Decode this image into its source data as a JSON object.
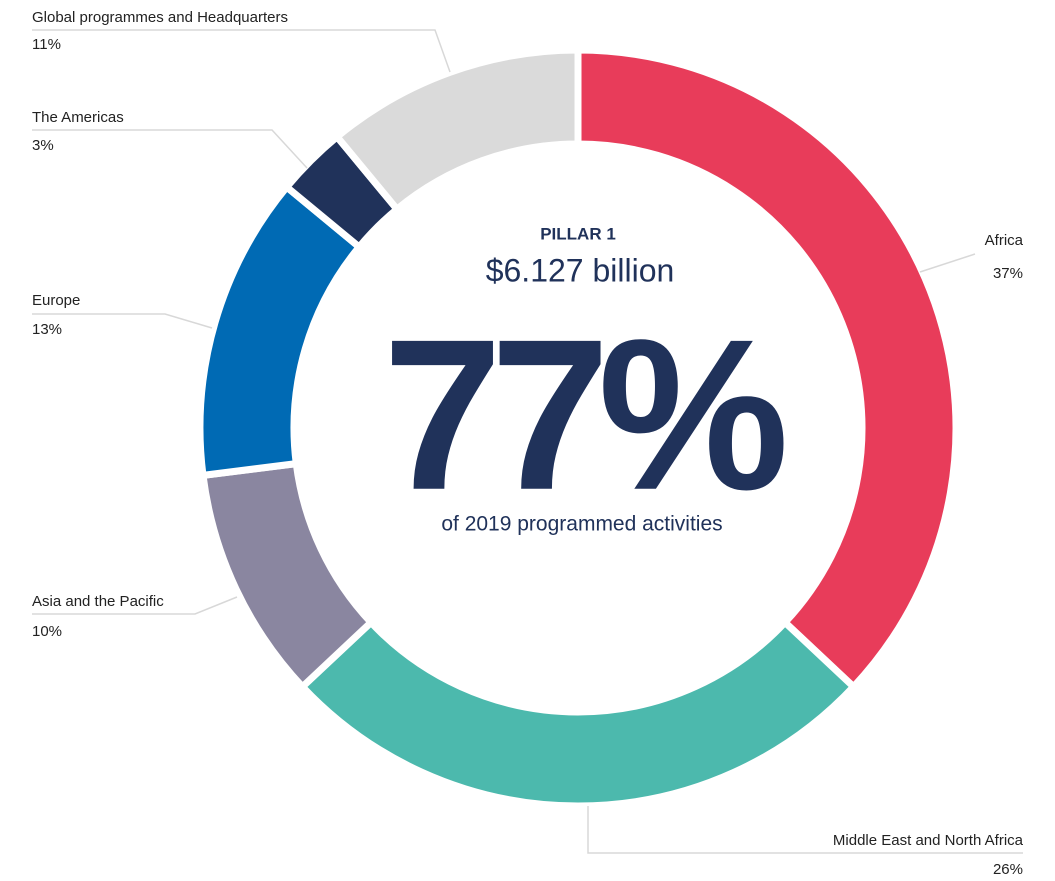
{
  "chart_data": {
    "type": "pie",
    "subtitle": "PILLAR 1",
    "title": "$6.127 billion",
    "center_value": "77%",
    "center_caption": "of 2019 programmed activities",
    "categories": [
      "Africa",
      "Middle East and North Africa",
      "Asia and the Pacific",
      "Europe",
      "The Americas",
      "Global programmes and Headquarters"
    ],
    "values": [
      37,
      26,
      10,
      13,
      3,
      11
    ],
    "value_labels": [
      "37%",
      "26%",
      "10%",
      "13%",
      "3%",
      "11%"
    ],
    "colors": [
      "#e83c5a",
      "#4cb9ad",
      "#8a86a0",
      "#006ab4",
      "#20325a",
      "#dadada"
    ]
  }
}
